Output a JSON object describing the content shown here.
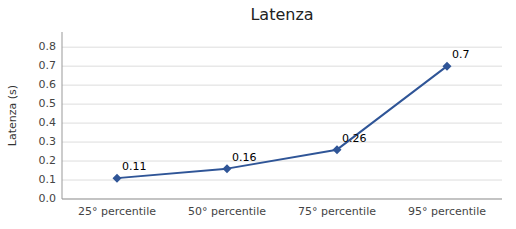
{
  "chart_data": {
    "type": "line",
    "title": "Latenza",
    "ylabel": "Latenza (s)",
    "categories": [
      "25° percentile",
      "50° percentile",
      "75° percentile",
      "95° percentile"
    ],
    "values": [
      0.11,
      0.16,
      0.26,
      0.7
    ],
    "color": "#2F5597",
    "marker": "diamond",
    "ylim": [
      0,
      0.88
    ],
    "yticks": [
      {
        "value": 0,
        "label": "0.0"
      },
      0.1,
      0.2,
      0.3,
      0.4,
      0.5,
      0.6,
      0.7,
      0.8
    ],
    "grid": true,
    "data_labels": true
  }
}
